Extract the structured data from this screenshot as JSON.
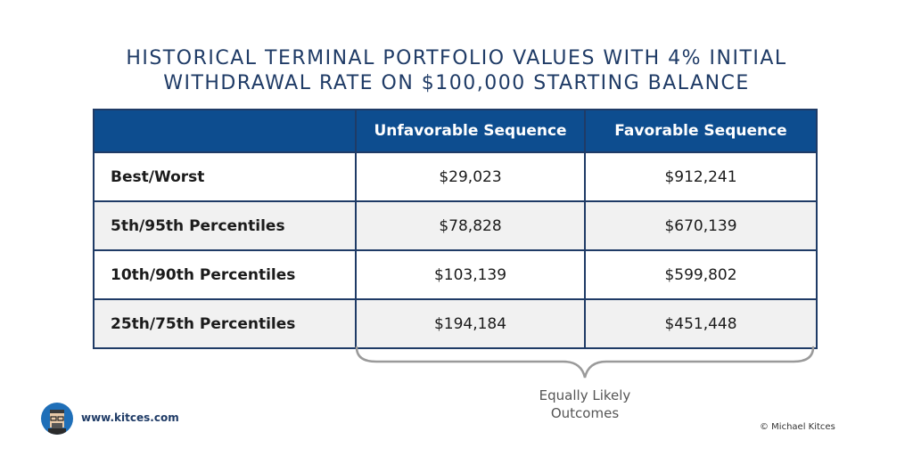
{
  "chart_data": {
    "type": "table",
    "title_lines": [
      "HISTORICAL TERMINAL PORTFOLIO VALUES WITH 4% INITIAL",
      "WITHDRAWAL RATE ON $100,000 STARTING BALANCE"
    ],
    "columns": [
      "",
      "Unfavorable Sequence",
      "Favorable Sequence"
    ],
    "rows": [
      {
        "label": "Best/Worst",
        "unfavorable": "$29,023",
        "favorable": "$912,241"
      },
      {
        "label": "5th/95th Percentiles",
        "unfavorable": "$78,828",
        "favorable": "$670,139"
      },
      {
        "label": "10th/90th Percentiles",
        "unfavorable": "$103,139",
        "favorable": "$599,802"
      },
      {
        "label": "25th/75th Percentiles",
        "unfavorable": "$194,184",
        "favorable": "$451,448"
      }
    ],
    "annotation": [
      "Equally Likely",
      "Outcomes"
    ]
  },
  "footer": {
    "website": "www.kitces.com",
    "copyright": "© Michael Kitces"
  },
  "colors": {
    "title": "#1f3b66",
    "header_bg": "#0d4d8f",
    "border": "#1f3b66",
    "alt_row": "#f1f1f1",
    "avatar_bg": "#1f6fb8"
  },
  "icons": {
    "avatar": "cartoon-avatar-icon"
  }
}
